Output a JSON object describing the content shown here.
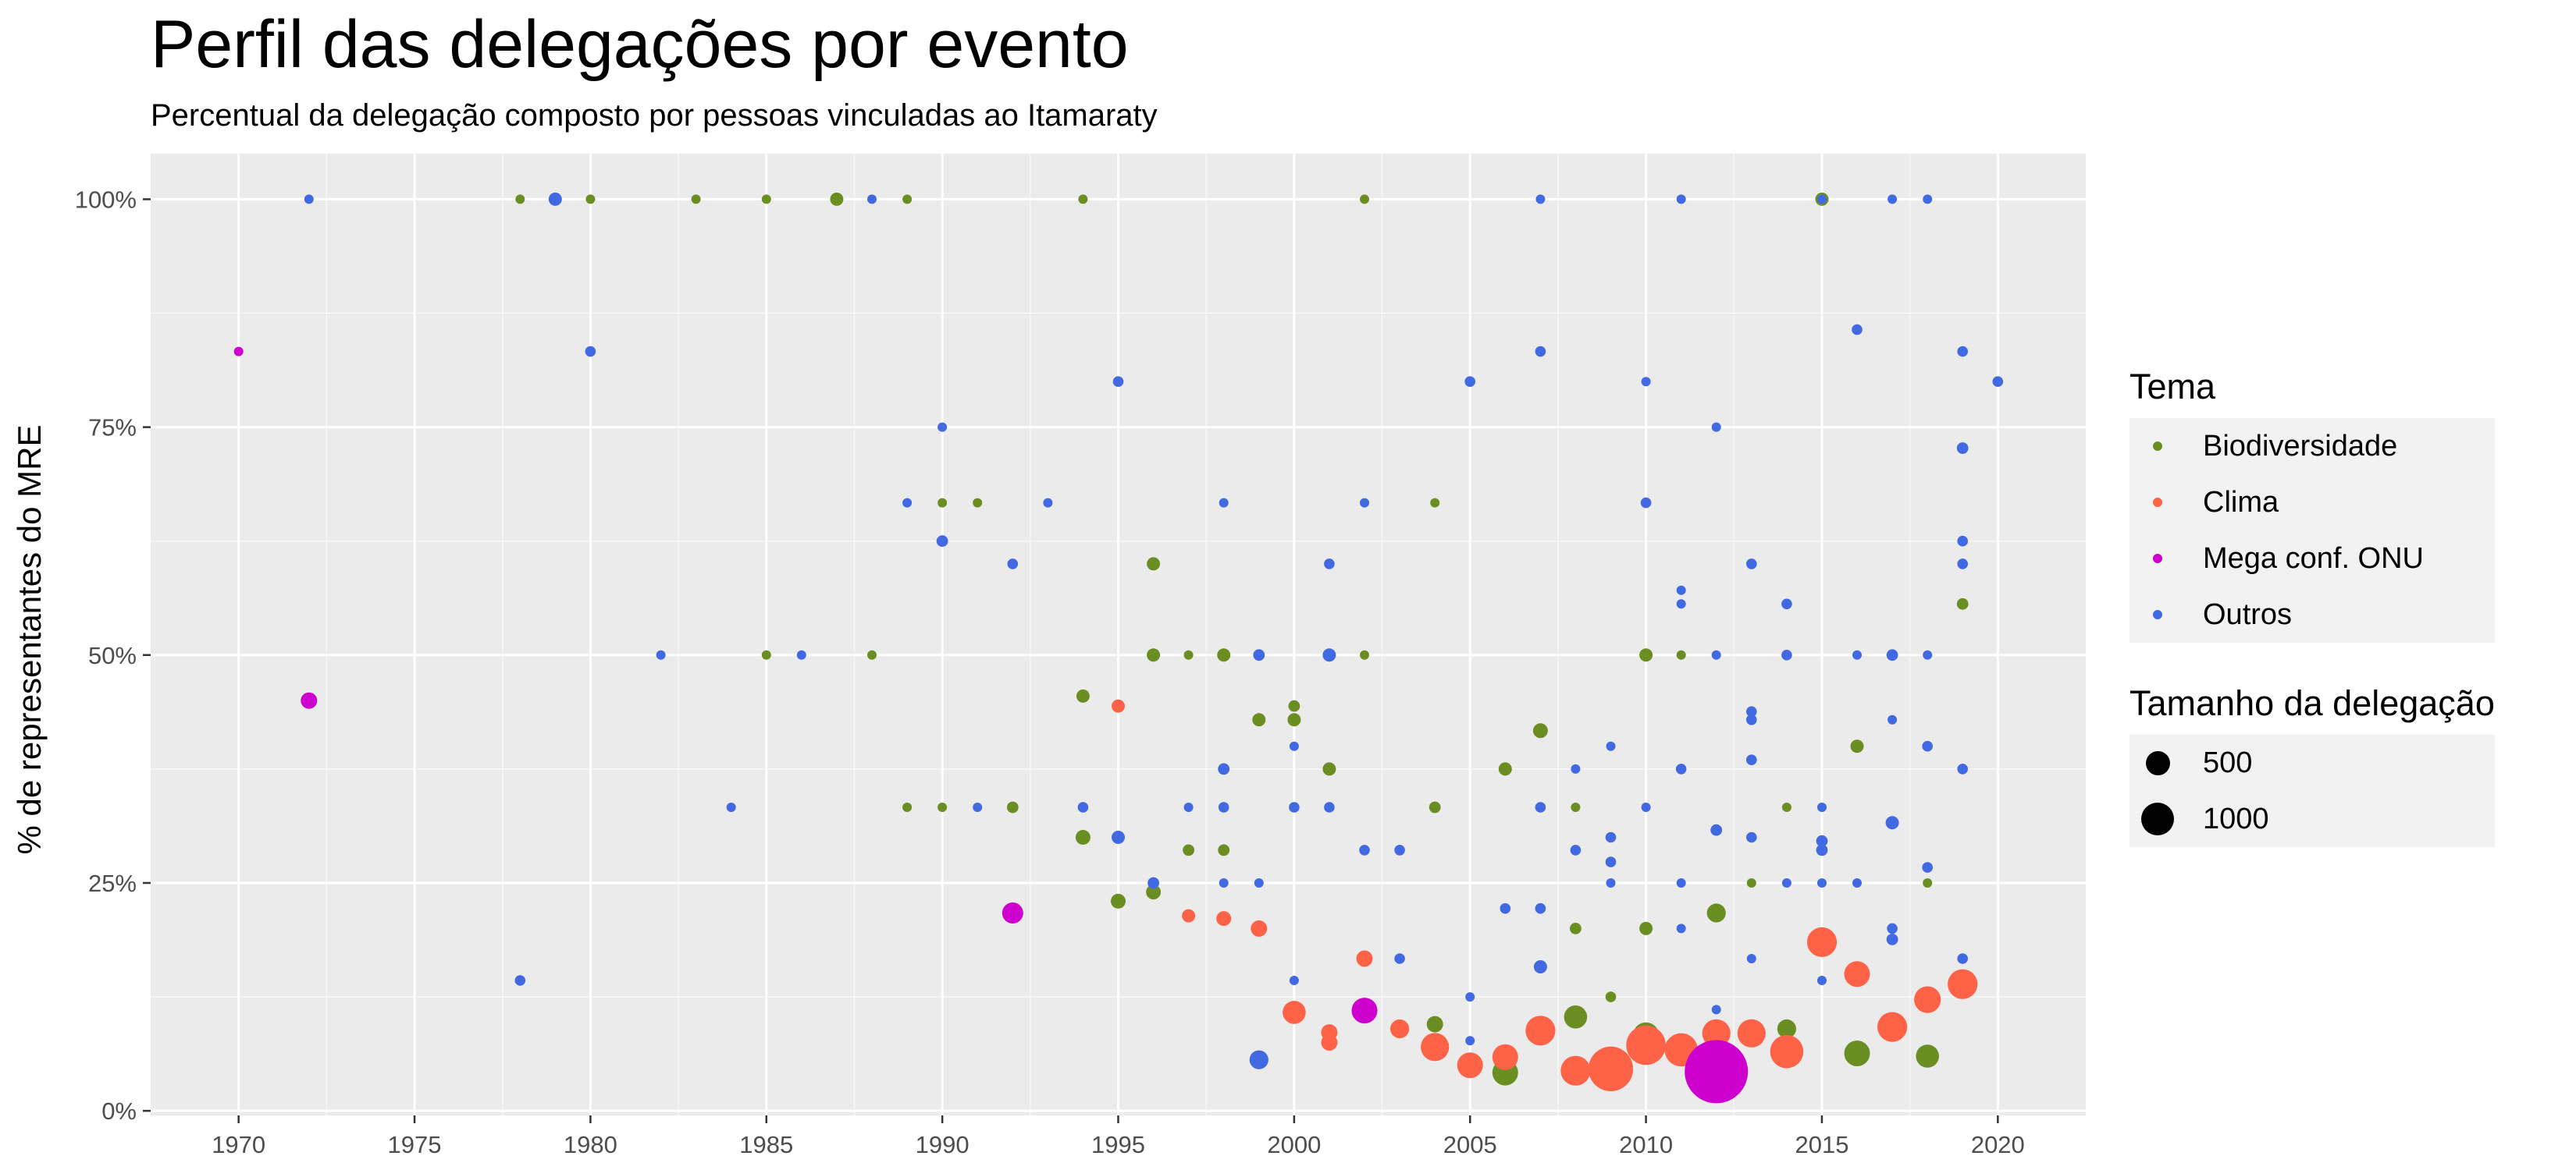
{
  "chart_data": {
    "type": "scatter",
    "title": "Perfil das delegações por evento",
    "subtitle": "Percentual da delegação composto por pessoas vinculadas ao Itamaraty",
    "xlabel": "",
    "ylabel": "% de representantes do MRE",
    "xlim": [
      1967.5,
      2022.5
    ],
    "ylim": [
      -0.005,
      1.05
    ],
    "x_ticks": [
      1970,
      1975,
      1980,
      1985,
      1990,
      1995,
      2000,
      2005,
      2010,
      2015,
      2020
    ],
    "x_tick_labels": [
      "1970",
      "1975",
      "1980",
      "1985",
      "1990",
      "1995",
      "2000",
      "2005",
      "2010",
      "2015",
      "2020"
    ],
    "y_ticks": [
      0,
      0.25,
      0.5,
      0.75,
      1.0
    ],
    "y_tick_labels": [
      "0%",
      "25%",
      "50%",
      "75%",
      "100%"
    ],
    "grid": true,
    "legend_position": "right",
    "color_legend": {
      "title": "Tema",
      "entries": [
        {
          "name": "Biodiversidade",
          "color": "#6b8e23"
        },
        {
          "name": "Clima",
          "color": "#ff6347"
        },
        {
          "name": "Mega conf. ONU",
          "color": "#cd00cd"
        },
        {
          "name": "Outros",
          "color": "#4169e1"
        }
      ]
    },
    "size_legend": {
      "title": "Tamanho da delegação",
      "entries": [
        {
          "label": "500",
          "value": 500
        },
        {
          "label": "1000",
          "value": 1000
        }
      ]
    },
    "series": [
      {
        "name": "Biodiversidade",
        "color": "#6b8e23",
        "points": [
          [
            1978,
            1.0,
            20
          ],
          [
            1980,
            1.0,
            20
          ],
          [
            1983,
            1.0,
            20
          ],
          [
            1985,
            1.0,
            15
          ],
          [
            1987,
            1.0,
            40
          ],
          [
            1989,
            1.0,
            15
          ],
          [
            1994,
            1.0,
            20
          ],
          [
            2002,
            1.0,
            15
          ],
          [
            2015,
            1.0,
            40
          ],
          [
            1990,
            0.667,
            20
          ],
          [
            1991,
            0.667,
            20
          ],
          [
            2004,
            0.667,
            20
          ],
          [
            1996,
            0.6,
            40
          ],
          [
            2019,
            0.556,
            30
          ],
          [
            1985,
            0.5,
            20
          ],
          [
            1988,
            0.5,
            20
          ],
          [
            1996,
            0.5,
            40
          ],
          [
            1997,
            0.5,
            20
          ],
          [
            1998,
            0.5,
            40
          ],
          [
            2002,
            0.5,
            20
          ],
          [
            2010,
            0.5,
            40
          ],
          [
            2011,
            0.5,
            20
          ],
          [
            1994,
            0.455,
            40
          ],
          [
            2000,
            0.444,
            30
          ],
          [
            1999,
            0.429,
            40
          ],
          [
            2000,
            0.429,
            40
          ],
          [
            2007,
            0.417,
            50
          ],
          [
            2016,
            0.4,
            40
          ],
          [
            2001,
            0.375,
            40
          ],
          [
            2006,
            0.375,
            40
          ],
          [
            1989,
            0.333,
            20
          ],
          [
            1990,
            0.333,
            20
          ],
          [
            1992,
            0.333,
            30
          ],
          [
            2004,
            0.333,
            30
          ],
          [
            2008,
            0.333,
            20
          ],
          [
            2014,
            0.333,
            20
          ],
          [
            1994,
            0.3,
            50
          ],
          [
            1997,
            0.286,
            30
          ],
          [
            1998,
            0.286,
            30
          ],
          [
            2013,
            0.25,
            15
          ],
          [
            2018,
            0.25,
            15
          ],
          [
            1996,
            0.24,
            50
          ],
          [
            1995,
            0.23,
            50
          ],
          [
            2012,
            0.217,
            80
          ],
          [
            2008,
            0.2,
            30
          ],
          [
            2010,
            0.2,
            40
          ],
          [
            2009,
            0.125,
            25
          ],
          [
            2008,
            0.103,
            120
          ],
          [
            2004,
            0.095,
            60
          ],
          [
            2014,
            0.09,
            80
          ],
          [
            2010,
            0.083,
            150
          ],
          [
            2016,
            0.063,
            150
          ],
          [
            2018,
            0.06,
            120
          ],
          [
            2006,
            0.042,
            150
          ]
        ]
      },
      {
        "name": "Clima",
        "color": "#ff6347",
        "points": [
          [
            1995,
            0.444,
            40
          ],
          [
            1997,
            0.214,
            40
          ],
          [
            1998,
            0.211,
            50
          ],
          [
            1999,
            0.2,
            60
          ],
          [
            2015,
            0.185,
            200
          ],
          [
            2002,
            0.167,
            60
          ],
          [
            2016,
            0.15,
            150
          ],
          [
            2019,
            0.139,
            200
          ],
          [
            2018,
            0.122,
            160
          ],
          [
            2000,
            0.108,
            120
          ],
          [
            2017,
            0.092,
            200
          ],
          [
            2003,
            0.09,
            80
          ],
          [
            2007,
            0.088,
            200
          ],
          [
            2001,
            0.086,
            60
          ],
          [
            2012,
            0.085,
            180
          ],
          [
            2013,
            0.085,
            180
          ],
          [
            2001,
            0.075,
            60
          ],
          [
            2010,
            0.072,
            350
          ],
          [
            2004,
            0.07,
            180
          ],
          [
            2011,
            0.067,
            250
          ],
          [
            2014,
            0.065,
            250
          ],
          [
            2006,
            0.059,
            150
          ],
          [
            2005,
            0.05,
            150
          ],
          [
            2009,
            0.046,
            450
          ],
          [
            2008,
            0.044,
            200
          ]
        ]
      },
      {
        "name": "Mega conf. ONU",
        "color": "#cd00cd",
        "points": [
          [
            1970,
            0.833,
            20
          ],
          [
            1972,
            0.45,
            60
          ],
          [
            1992,
            0.217,
            100
          ],
          [
            2002,
            0.11,
            150
          ],
          [
            2012,
            0.043,
            900
          ]
        ]
      },
      {
        "name": "Outros",
        "color": "#4169e1",
        "points": [
          [
            1972,
            1.0,
            15
          ],
          [
            1979,
            1.0,
            40
          ],
          [
            1988,
            1.0,
            15
          ],
          [
            2007,
            1.0,
            15
          ],
          [
            2011,
            1.0,
            15
          ],
          [
            2015,
            1.0,
            15
          ],
          [
            2017,
            1.0,
            15
          ],
          [
            2018,
            1.0,
            15
          ],
          [
            2016,
            0.857,
            25
          ],
          [
            1980,
            0.833,
            25
          ],
          [
            2007,
            0.833,
            25
          ],
          [
            2019,
            0.833,
            25
          ],
          [
            1995,
            0.8,
            25
          ],
          [
            2005,
            0.8,
            25
          ],
          [
            2010,
            0.8,
            20
          ],
          [
            2020,
            0.8,
            25
          ],
          [
            1990,
            0.75,
            20
          ],
          [
            2012,
            0.75,
            20
          ],
          [
            2019,
            0.727,
            30
          ],
          [
            1989,
            0.667,
            20
          ],
          [
            1993,
            0.667,
            20
          ],
          [
            1998,
            0.667,
            20
          ],
          [
            2002,
            0.667,
            20
          ],
          [
            2010,
            0.667,
            25
          ],
          [
            1990,
            0.625,
            30
          ],
          [
            2019,
            0.625,
            25
          ],
          [
            1992,
            0.6,
            25
          ],
          [
            2001,
            0.6,
            25
          ],
          [
            2013,
            0.6,
            25
          ],
          [
            2019,
            0.6,
            25
          ],
          [
            2011,
            0.571,
            20
          ],
          [
            2011,
            0.556,
            20
          ],
          [
            2014,
            0.556,
            25
          ],
          [
            1982,
            0.5,
            20
          ],
          [
            1986,
            0.5,
            20
          ],
          [
            1999,
            0.5,
            30
          ],
          [
            2001,
            0.5,
            40
          ],
          [
            2012,
            0.5,
            15
          ],
          [
            2014,
            0.5,
            25
          ],
          [
            2016,
            0.5,
            20
          ],
          [
            2017,
            0.5,
            30
          ],
          [
            2018,
            0.5,
            15
          ],
          [
            2013,
            0.438,
            25
          ],
          [
            2013,
            0.429,
            25
          ],
          [
            2017,
            0.429,
            20
          ],
          [
            2000,
            0.4,
            20
          ],
          [
            2009,
            0.4,
            20
          ],
          [
            2018,
            0.4,
            25
          ],
          [
            2013,
            0.385,
            25
          ],
          [
            1998,
            0.375,
            30
          ],
          [
            2008,
            0.375,
            20
          ],
          [
            2011,
            0.375,
            25
          ],
          [
            2019,
            0.375,
            25
          ],
          [
            1984,
            0.333,
            20
          ],
          [
            1991,
            0.333,
            20
          ],
          [
            1994,
            0.333,
            25
          ],
          [
            1997,
            0.333,
            20
          ],
          [
            1998,
            0.333,
            25
          ],
          [
            2000,
            0.333,
            25
          ],
          [
            2001,
            0.333,
            25
          ],
          [
            2007,
            0.333,
            25
          ],
          [
            2010,
            0.333,
            20
          ],
          [
            2015,
            0.333,
            20
          ],
          [
            2017,
            0.316,
            40
          ],
          [
            2012,
            0.308,
            30
          ],
          [
            1995,
            0.3,
            40
          ],
          [
            2009,
            0.3,
            25
          ],
          [
            2013,
            0.3,
            25
          ],
          [
            2015,
            0.296,
            30
          ],
          [
            2015,
            0.286,
            30
          ],
          [
            2002,
            0.286,
            25
          ],
          [
            2003,
            0.286,
            25
          ],
          [
            2008,
            0.286,
            25
          ],
          [
            2009,
            0.273,
            25
          ],
          [
            2018,
            0.267,
            25
          ],
          [
            1996,
            0.25,
            30
          ],
          [
            1998,
            0.25,
            20
          ],
          [
            1999,
            0.25,
            20
          ],
          [
            2009,
            0.25,
            20
          ],
          [
            2011,
            0.25,
            20
          ],
          [
            2014,
            0.25,
            20
          ],
          [
            2015,
            0.25,
            20
          ],
          [
            2016,
            0.25,
            20
          ],
          [
            2006,
            0.222,
            25
          ],
          [
            2007,
            0.222,
            25
          ],
          [
            2011,
            0.2,
            20
          ],
          [
            2017,
            0.2,
            25
          ],
          [
            2017,
            0.188,
            30
          ],
          [
            2003,
            0.167,
            25
          ],
          [
            2013,
            0.167,
            20
          ],
          [
            2019,
            0.167,
            25
          ],
          [
            2007,
            0.158,
            40
          ],
          [
            1978,
            0.143,
            25
          ],
          [
            2000,
            0.143,
            20
          ],
          [
            2015,
            0.143,
            20
          ],
          [
            2005,
            0.125,
            20
          ],
          [
            2012,
            0.111,
            20
          ],
          [
            2005,
            0.077,
            20
          ],
          [
            1999,
            0.056,
            80
          ]
        ]
      }
    ]
  }
}
